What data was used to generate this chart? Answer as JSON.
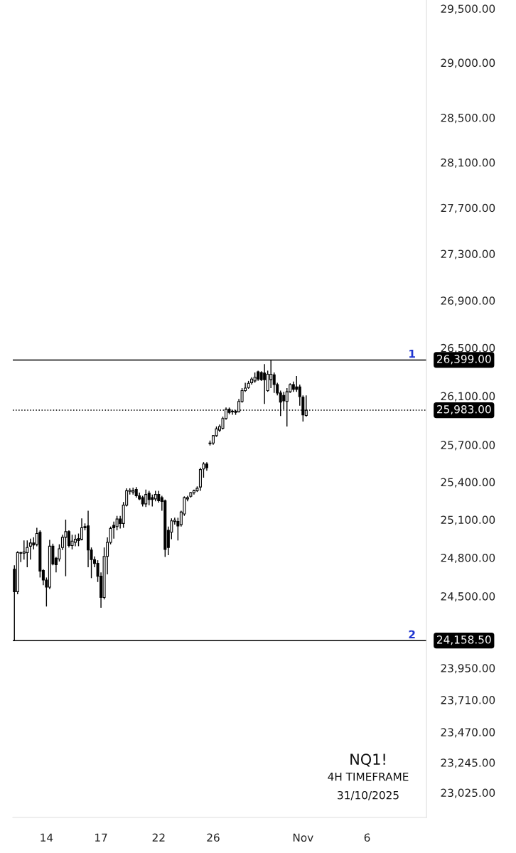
{
  "chart_data": {
    "type": "candlestick",
    "categories": [
      null,
      null,
      null,
      null,
      null,
      null,
      null,
      null,
      null,
      null,
      "14",
      null,
      null,
      null,
      null,
      null,
      null,
      null,
      null,
      null,
      null,
      null,
      null,
      null,
      null,
      null,
      null,
      "17",
      null,
      null,
      null,
      null,
      null,
      null,
      null,
      null,
      null,
      null,
      null,
      null,
      null,
      null,
      null,
      null,
      null,
      "22",
      null,
      null,
      null,
      null,
      null,
      null,
      null,
      null,
      null,
      null,
      null,
      null,
      null,
      null,
      null,
      null,
      "26",
      null,
      null,
      null,
      null,
      null,
      null,
      null,
      null,
      null,
      null,
      null,
      null,
      null,
      null,
      null,
      null,
      null,
      null,
      null,
      null,
      null,
      null,
      null,
      null,
      null,
      null,
      null,
      "Nov",
      null,
      null,
      null,
      null,
      null,
      null,
      null,
      null,
      null,
      null,
      null,
      null,
      null,
      null,
      null,
      null,
      null,
      null,
      null,
      "6",
      null,
      null,
      null,
      null,
      null,
      null,
      null,
      null,
      null,
      null,
      null,
      null,
      null,
      null,
      null,
      null,
      null,
      null
    ],
    "ohlc": [
      [
        24710,
        24740,
        24158.5,
        24535
      ],
      [
        24535,
        24850,
        24515,
        24840
      ],
      [
        24840,
        24845,
        24765,
        24835
      ],
      [
        24835,
        24935,
        24785,
        24845
      ],
      [
        24840,
        24935,
        24725,
        24880
      ],
      [
        24890,
        24950,
        24785,
        24915
      ],
      [
        24915,
        24960,
        24865,
        24900
      ],
      [
        24905,
        25035,
        24890,
        24990
      ],
      [
        25000,
        25015,
        24645,
        24695
      ],
      [
        24700,
        24710,
        24585,
        24625
      ],
      [
        24625,
        24645,
        24420,
        24570
      ],
      [
        24570,
        24940,
        24555,
        24890
      ],
      [
        24890,
        24910,
        24740,
        24750
      ],
      [
        24795,
        24805,
        24685,
        24745
      ],
      [
        24790,
        24905,
        24770,
        24870
      ],
      [
        24880,
        24980,
        24860,
        24960
      ],
      [
        24960,
        25100,
        24655,
        25005
      ],
      [
        25005,
        25015,
        24880,
        24895
      ],
      [
        24895,
        24980,
        24865,
        24930
      ],
      [
        24920,
        24980,
        24890,
        24945
      ],
      [
        24950,
        24990,
        24890,
        24935
      ],
      [
        24945,
        25110,
        24935,
        25035
      ],
      [
        25045,
        25070,
        25015,
        25035
      ],
      [
        25050,
        25170,
        24725,
        24860
      ],
      [
        24860,
        24880,
        24640,
        24785
      ],
      [
        24785,
        24810,
        24725,
        24755
      ],
      [
        24755,
        24780,
        24610,
        24655
      ],
      [
        24655,
        24685,
        24410,
        24490
      ],
      [
        24490,
        24880,
        24475,
        24810
      ],
      [
        24810,
        24960,
        24670,
        24920
      ],
      [
        24920,
        25045,
        24905,
        25030
      ],
      [
        25055,
        25085,
        24950,
        25035
      ],
      [
        25045,
        25130,
        25015,
        25105
      ],
      [
        25105,
        25130,
        25030,
        25070
      ],
      [
        25070,
        25240,
        25035,
        25215
      ],
      [
        25215,
        25350,
        25205,
        25330
      ],
      [
        25325,
        25350,
        25300,
        25335
      ],
      [
        25320,
        25355,
        25300,
        25330
      ],
      [
        25340,
        25360,
        25275,
        25290
      ],
      [
        25290,
        25315,
        25255,
        25265
      ],
      [
        25275,
        25290,
        25205,
        25225
      ],
      [
        25225,
        25340,
        25200,
        25300
      ],
      [
        25310,
        25330,
        25215,
        25260
      ],
      [
        25275,
        25300,
        25205,
        25260
      ],
      [
        25265,
        25330,
        25245,
        25300
      ],
      [
        25300,
        25330,
        25235,
        25250
      ],
      [
        25275,
        25290,
        25170,
        25245
      ],
      [
        25250,
        25260,
        24805,
        24865
      ],
      [
        25015,
        25045,
        24820,
        24880
      ],
      [
        25000,
        25110,
        24945,
        25090
      ],
      [
        25085,
        25115,
        25060,
        25095
      ],
      [
        25085,
        25115,
        24935,
        25050
      ],
      [
        25060,
        25170,
        25045,
        25160
      ],
      [
        25145,
        25285,
        25130,
        25275
      ],
      [
        25265,
        25290,
        25245,
        25275
      ],
      [
        25285,
        25320,
        25275,
        25315
      ],
      [
        25315,
        25340,
        25300,
        25330
      ],
      [
        25330,
        25365,
        25320,
        25350
      ],
      [
        25360,
        25515,
        25330,
        25500
      ],
      [
        25505,
        25560,
        25435,
        25545
      ],
      [
        25545,
        25560,
        25490,
        25515
      ],
      [
        25710,
        25735,
        25695,
        25715
      ],
      [
        25715,
        25780,
        25700,
        25775
      ],
      [
        25775,
        25850,
        25765,
        25830
      ],
      [
        25820,
        25865,
        25805,
        25850
      ],
      [
        25835,
        25930,
        25825,
        25915
      ],
      [
        25915,
        26005,
        25905,
        25990
      ],
      [
        25990,
        26005,
        25950,
        25965
      ],
      [
        25975,
        25985,
        25945,
        25970
      ],
      [
        25975,
        25985,
        25945,
        25965
      ],
      [
        25970,
        26075,
        25965,
        26055
      ],
      [
        26055,
        26165,
        26045,
        26145
      ],
      [
        26145,
        26210,
        26135,
        26165
      ],
      [
        26170,
        26225,
        26160,
        26205
      ],
      [
        26210,
        26255,
        26195,
        26240
      ],
      [
        26225,
        26295,
        26210,
        26255
      ],
      [
        26300,
        26310,
        26225,
        26240
      ],
      [
        26295,
        26305,
        26225,
        26235
      ],
      [
        26290,
        26365,
        26035,
        26235
      ],
      [
        26145,
        26310,
        26135,
        26280
      ],
      [
        26235,
        26399,
        26165,
        26280
      ],
      [
        26275,
        26295,
        26125,
        26195
      ],
      [
        26195,
        26210,
        26105,
        26125
      ],
      [
        26125,
        26145,
        25935,
        26050
      ],
      [
        26105,
        26135,
        25990,
        26060
      ],
      [
        26055,
        26165,
        25850,
        26135
      ],
      [
        26135,
        26205,
        26125,
        26195
      ],
      [
        26195,
        26220,
        26135,
        26155
      ],
      [
        26175,
        26265,
        26135,
        26155
      ],
      [
        26175,
        26195,
        26020,
        26095
      ],
      [
        26090,
        26105,
        25890,
        25945
      ],
      [
        25940,
        26105,
        25930,
        25983
      ],
      null,
      null,
      null,
      null,
      null,
      null,
      null,
      null,
      null,
      null,
      null,
      null,
      null,
      null,
      null,
      null,
      null,
      null,
      null,
      null,
      null,
      null,
      null,
      null,
      null,
      null,
      null,
      null,
      null,
      null,
      null,
      null,
      null,
      null,
      null,
      null,
      null
    ],
    "log": "y",
    "ylim": [
      22845,
      29580
    ],
    "yticks": [
      {
        "value": 29500,
        "label": "29,500.00"
      },
      {
        "value": 29000,
        "label": "29,000.00"
      },
      {
        "value": 28500,
        "label": "28,500.00"
      },
      {
        "value": 28100,
        "label": "28,100.00"
      },
      {
        "value": 27700,
        "label": "27,700.00"
      },
      {
        "value": 27300,
        "label": "27,300.00"
      },
      {
        "value": 26900,
        "label": "26,900.00"
      },
      {
        "value": 26500,
        "label": "26,500.00"
      },
      {
        "value": 26100,
        "label": "26,100.00"
      },
      {
        "value": 25700,
        "label": "25,700.00"
      },
      {
        "value": 25400,
        "label": "25,400.00"
      },
      {
        "value": 25100,
        "label": "25,100.00"
      },
      {
        "value": 24800,
        "label": "24,800.00"
      },
      {
        "value": 24500,
        "label": "24,500.00"
      },
      {
        "value": 23950,
        "label": "23,950.00"
      },
      {
        "value": 23710,
        "label": "23,710.00"
      },
      {
        "value": 23470,
        "label": "23,470.00"
      },
      {
        "value": 23245,
        "label": "23,245.00"
      },
      {
        "value": 23025,
        "label": "23,025.00"
      }
    ],
    "grid": false,
    "ref_lines": [
      {
        "axis": "y",
        "value": 26399,
        "label": "26,399.00",
        "color": "#000000",
        "line_style": "solid"
      },
      {
        "axis": "y",
        "value": 25983,
        "label": "25,983.00",
        "color": "#000000",
        "line_style": "dotted"
      },
      {
        "axis": "y",
        "value": 24158.5,
        "label": "24,158.50",
        "color": "#000000",
        "line_style": "solid"
      }
    ],
    "annotations": [
      "1",
      "2",
      "NQ1!",
      "4H TIMEFRAME",
      "31/10/2025"
    ]
  }
}
